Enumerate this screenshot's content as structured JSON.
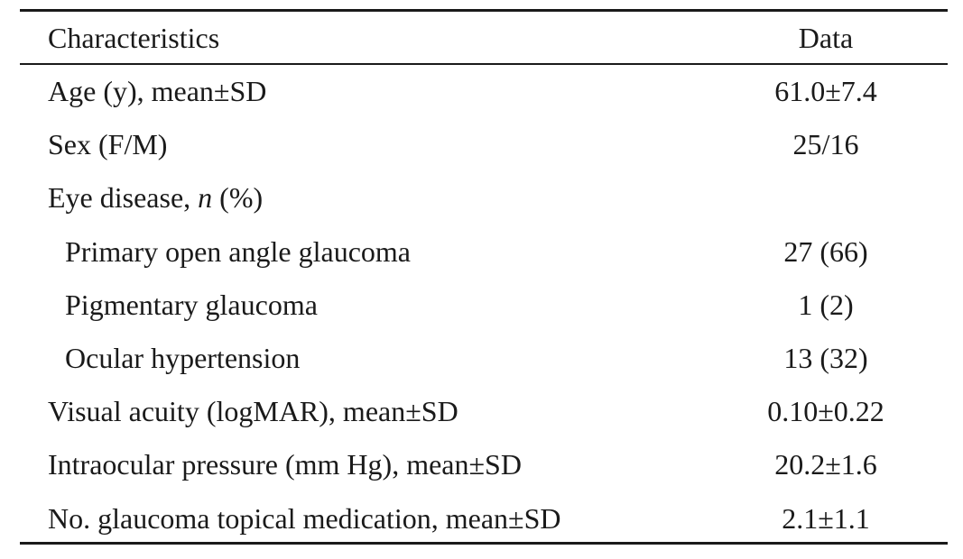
{
  "table": {
    "header": [
      "Characteristics",
      "Data"
    ],
    "rows": [
      {
        "label": "Age (y), mean±SD",
        "value": "61.0±7.4"
      },
      {
        "label": "Sex (F/M)",
        "value": "25/16"
      },
      {
        "label": [
          {
            "text": "Eye disease, "
          },
          {
            "text": "n",
            "italic": true
          },
          {
            "text": " (%)"
          }
        ]
      },
      {
        "label": "Primary open angle glaucoma",
        "value": "27 (66)",
        "indent": true
      },
      {
        "label": "Pigmentary glaucoma",
        "value": "1 (2)",
        "indent": true
      },
      {
        "label": "Ocular hypertension",
        "value": "13 (32)",
        "indent": true
      },
      {
        "label": "Visual acuity (logMAR), mean±SD",
        "value": "0.10±0.22"
      },
      {
        "label": "Intraocular pressure (mm Hg), mean±SD",
        "value": "20.2±1.6"
      },
      {
        "label": "No. glaucoma topical medication, mean±SD",
        "value": "2.1±1.1"
      }
    ]
  }
}
